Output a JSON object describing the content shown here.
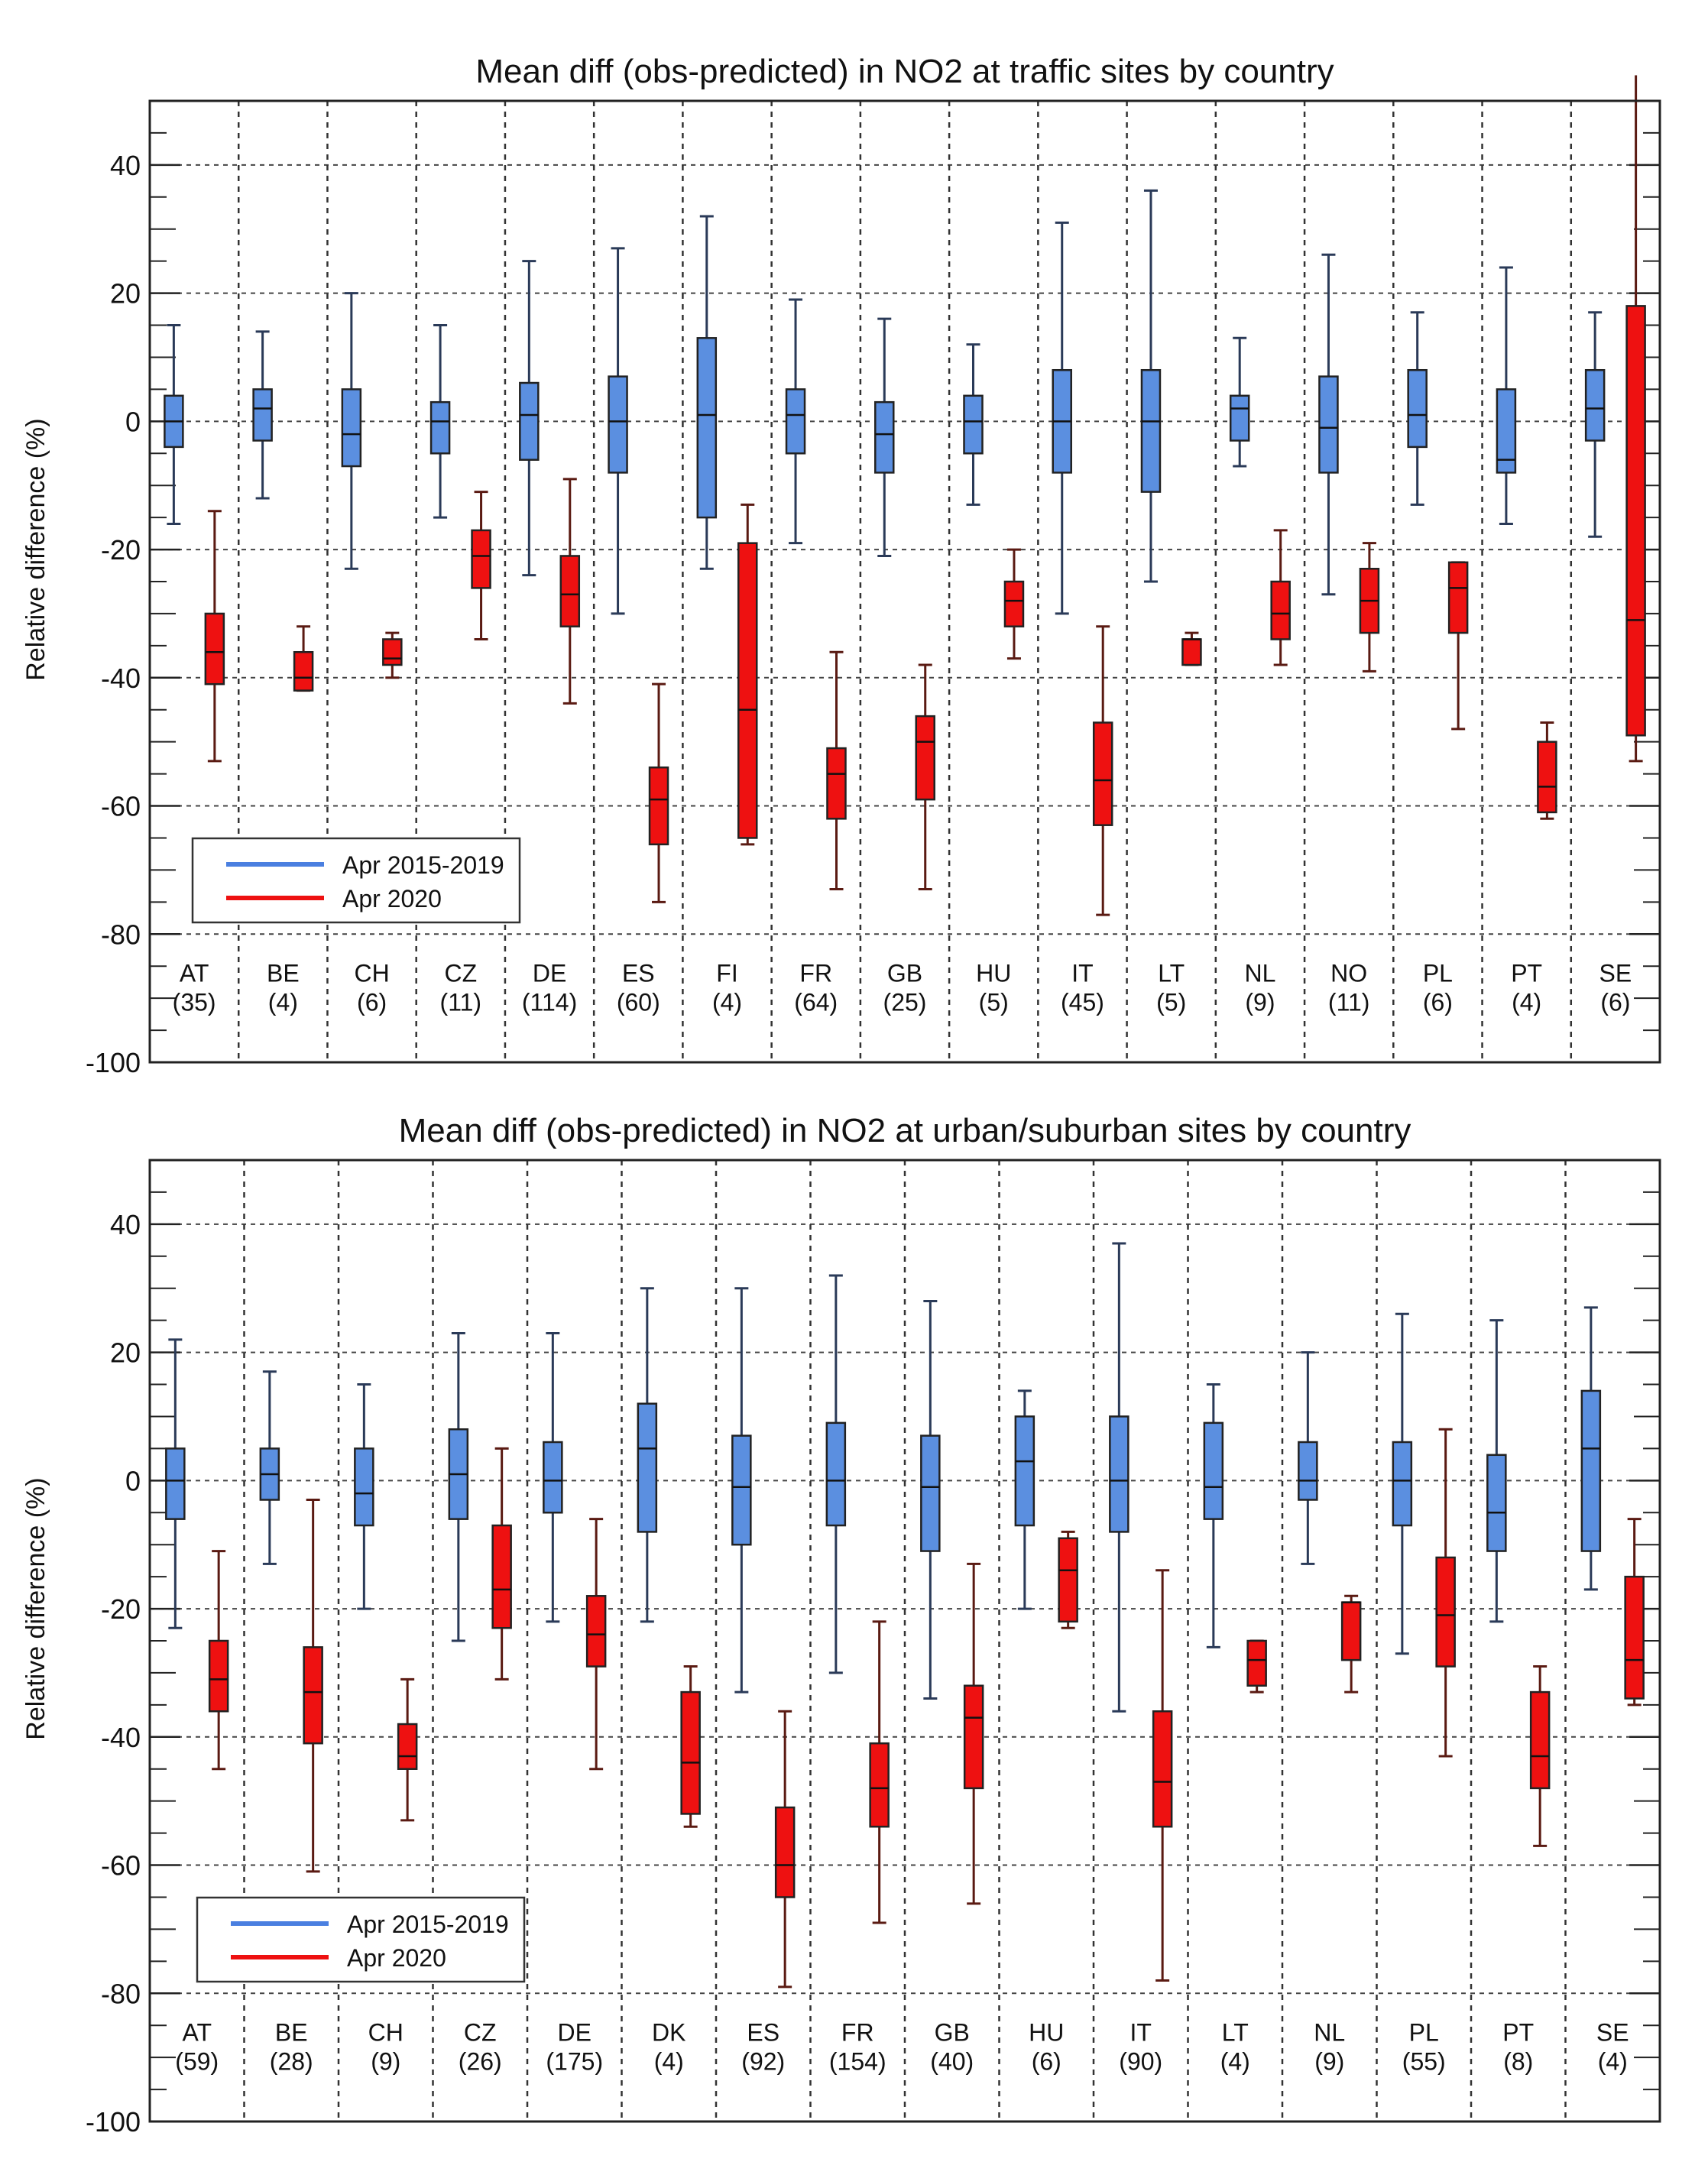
{
  "series_styles": {
    "baseline": {
      "name": "Apr 2015-2019",
      "box_color": "#5b8fe0",
      "whisker_color": "#2a3a58"
    },
    "lockdown": {
      "name": "Apr 2020",
      "box_color": "#ee1111",
      "whisker_color": "#5a1a12"
    }
  },
  "legend_line_colors": {
    "baseline": "#4a7fe0",
    "lockdown": "#ee1111"
  },
  "chart_data": [
    {
      "id": "traffic",
      "type": "boxplot",
      "title": "Mean diff (obs-predicted) in NO2 at traffic sites by country",
      "ylabel": "Relative difference (%)",
      "ylim": [
        -100,
        50
      ],
      "yticks": [
        -100,
        -80,
        -60,
        -40,
        -20,
        0,
        20,
        40
      ],
      "grid": true,
      "legend_placement": "bottom-left",
      "legend": [
        "Apr 2015-2019",
        "Apr 2020"
      ],
      "categories": [
        "AT",
        "BE",
        "CH",
        "CZ",
        "DE",
        "ES",
        "FI",
        "FR",
        "GB",
        "HU",
        "IT",
        "LT",
        "NL",
        "NO",
        "PL",
        "PT",
        "SE"
      ],
      "counts": [
        "(35)",
        "(4)",
        "(6)",
        "(11)",
        "(114)",
        "(60)",
        "(4)",
        "(64)",
        "(25)",
        "(5)",
        "(45)",
        "(5)",
        "(9)",
        "(11)",
        "(6)",
        "(4)",
        "(6)"
      ],
      "series": [
        {
          "name": "Apr 2015-2019",
          "boxes": [
            {
              "min": -16,
              "q1": -4,
              "median": 0,
              "q3": 4,
              "max": 15
            },
            {
              "min": -12,
              "q1": -3,
              "median": 2,
              "q3": 5,
              "max": 14
            },
            {
              "min": -23,
              "q1": -7,
              "median": -2,
              "q3": 5,
              "max": 20
            },
            {
              "min": -15,
              "q1": -5,
              "median": 0,
              "q3": 3,
              "max": 15
            },
            {
              "min": -24,
              "q1": -6,
              "median": 1,
              "q3": 6,
              "max": 25
            },
            {
              "min": -30,
              "q1": -8,
              "median": 0,
              "q3": 7,
              "max": 27
            },
            {
              "min": -23,
              "q1": -15,
              "median": 1,
              "q3": 13,
              "max": 32
            },
            {
              "min": -19,
              "q1": -5,
              "median": 1,
              "q3": 5,
              "max": 19
            },
            {
              "min": -21,
              "q1": -8,
              "median": -2,
              "q3": 3,
              "max": 16
            },
            {
              "min": -13,
              "q1": -5,
              "median": 0,
              "q3": 4,
              "max": 12
            },
            {
              "min": -30,
              "q1": -8,
              "median": 0,
              "q3": 8,
              "max": 31
            },
            {
              "min": -25,
              "q1": -11,
              "median": 0,
              "q3": 8,
              "max": 36
            },
            {
              "min": -7,
              "q1": -3,
              "median": 2,
              "q3": 4,
              "max": 13
            },
            {
              "min": -27,
              "q1": -8,
              "median": -1,
              "q3": 7,
              "max": 26
            },
            {
              "min": -13,
              "q1": -4,
              "median": 1,
              "q3": 8,
              "max": 17
            },
            {
              "min": -16,
              "q1": -8,
              "median": -6,
              "q3": 5,
              "max": 24
            },
            {
              "min": -18,
              "q1": -3,
              "median": 2,
              "q3": 8,
              "max": 17
            }
          ]
        },
        {
          "name": "Apr 2020",
          "boxes": [
            {
              "min": -53,
              "q1": -41,
              "median": -36,
              "q3": -30,
              "max": -14
            },
            {
              "min": -42,
              "q1": -42,
              "median": -40,
              "q3": -36,
              "max": -32
            },
            {
              "min": -40,
              "q1": -38,
              "median": -37,
              "q3": -34,
              "max": -33
            },
            {
              "min": -34,
              "q1": -26,
              "median": -21,
              "q3": -17,
              "max": -11
            },
            {
              "min": -44,
              "q1": -32,
              "median": -27,
              "q3": -21,
              "max": -9
            },
            {
              "min": -75,
              "q1": -66,
              "median": -59,
              "q3": -54,
              "max": -41
            },
            {
              "min": -66,
              "q1": -65,
              "median": -45,
              "q3": -19,
              "max": -13
            },
            {
              "min": -73,
              "q1": -62,
              "median": -55,
              "q3": -51,
              "max": -36
            },
            {
              "min": -73,
              "q1": -59,
              "median": -50,
              "q3": -46,
              "max": -38
            },
            {
              "min": -37,
              "q1": -32,
              "median": -28,
              "q3": -25,
              "max": -20
            },
            {
              "min": -77,
              "q1": -63,
              "median": -56,
              "q3": -47,
              "max": -32
            },
            {
              "min": -38,
              "q1": -38,
              "median": -34,
              "q3": -34,
              "max": -33
            },
            {
              "min": -38,
              "q1": -34,
              "median": -30,
              "q3": -25,
              "max": -17
            },
            {
              "min": -39,
              "q1": -33,
              "median": -28,
              "q3": -23,
              "max": -19
            },
            {
              "min": -48,
              "q1": -33,
              "median": -26,
              "q3": -22,
              "max": -22
            },
            {
              "min": -62,
              "q1": -61,
              "median": -57,
              "q3": -50,
              "max": -47
            },
            {
              "min": -53,
              "q1": -49,
              "median": -31,
              "q3": 18,
              "max": 60
            }
          ]
        }
      ]
    },
    {
      "id": "urban",
      "type": "boxplot",
      "title": "Mean diff (obs-predicted) in NO2 at urban/suburban sites by country",
      "ylabel": "Relative difference (%)",
      "ylim": [
        -100,
        50
      ],
      "yticks": [
        -100,
        -80,
        -60,
        -40,
        -20,
        0,
        20,
        40
      ],
      "grid": true,
      "legend_placement": "bottom-left",
      "legend": [
        "Apr 2015-2019",
        "Apr 2020"
      ],
      "categories": [
        "AT",
        "BE",
        "CH",
        "CZ",
        "DE",
        "DK",
        "ES",
        "FR",
        "GB",
        "HU",
        "IT",
        "LT",
        "NL",
        "PL",
        "PT",
        "SE"
      ],
      "counts": [
        "(59)",
        "(28)",
        "(9)",
        "(26)",
        "(175)",
        "(4)",
        "(92)",
        "(154)",
        "(40)",
        "(6)",
        "(90)",
        "(4)",
        "(9)",
        "(55)",
        "(8)",
        "(4)"
      ],
      "series": [
        {
          "name": "Apr 2015-2019",
          "boxes": [
            {
              "min": -23,
              "q1": -6,
              "median": 0,
              "q3": 5,
              "max": 22
            },
            {
              "min": -13,
              "q1": -3,
              "median": 1,
              "q3": 5,
              "max": 17
            },
            {
              "min": -20,
              "q1": -7,
              "median": -2,
              "q3": 5,
              "max": 15
            },
            {
              "min": -25,
              "q1": -6,
              "median": 1,
              "q3": 8,
              "max": 23
            },
            {
              "min": -22,
              "q1": -5,
              "median": 0,
              "q3": 6,
              "max": 23
            },
            {
              "min": -22,
              "q1": -8,
              "median": 5,
              "q3": 12,
              "max": 30
            },
            {
              "min": -33,
              "q1": -10,
              "median": -1,
              "q3": 7,
              "max": 30
            },
            {
              "min": -30,
              "q1": -7,
              "median": 0,
              "q3": 9,
              "max": 32
            },
            {
              "min": -34,
              "q1": -11,
              "median": -1,
              "q3": 7,
              "max": 28
            },
            {
              "min": -20,
              "q1": -7,
              "median": 3,
              "q3": 10,
              "max": 14
            },
            {
              "min": -36,
              "q1": -8,
              "median": 0,
              "q3": 10,
              "max": 37
            },
            {
              "min": -26,
              "q1": -6,
              "median": -1,
              "q3": 9,
              "max": 15
            },
            {
              "min": -13,
              "q1": -3,
              "median": 0,
              "q3": 6,
              "max": 20
            },
            {
              "min": -27,
              "q1": -7,
              "median": 0,
              "q3": 6,
              "max": 26
            },
            {
              "min": -22,
              "q1": -11,
              "median": -5,
              "q3": 4,
              "max": 25
            },
            {
              "min": -17,
              "q1": -11,
              "median": 5,
              "q3": 14,
              "max": 27
            }
          ]
        },
        {
          "name": "Apr 2020",
          "boxes": [
            {
              "min": -45,
              "q1": -36,
              "median": -31,
              "q3": -25,
              "max": -11
            },
            {
              "min": -61,
              "q1": -41,
              "median": -33,
              "q3": -26,
              "max": -3
            },
            {
              "min": -53,
              "q1": -45,
              "median": -43,
              "q3": -38,
              "max": -31
            },
            {
              "min": -31,
              "q1": -23,
              "median": -17,
              "q3": -7,
              "max": 5
            },
            {
              "min": -45,
              "q1": -29,
              "median": -24,
              "q3": -18,
              "max": -6
            },
            {
              "min": -54,
              "q1": -52,
              "median": -44,
              "q3": -33,
              "max": -29
            },
            {
              "min": -79,
              "q1": -65,
              "median": -60,
              "q3": -51,
              "max": -36
            },
            {
              "min": -69,
              "q1": -54,
              "median": -48,
              "q3": -41,
              "max": -22
            },
            {
              "min": -66,
              "q1": -48,
              "median": -37,
              "q3": -32,
              "max": -13
            },
            {
              "min": -23,
              "q1": -22,
              "median": -14,
              "q3": -9,
              "max": -8
            },
            {
              "min": -78,
              "q1": -54,
              "median": -47,
              "q3": -36,
              "max": -14
            },
            {
              "min": -33,
              "q1": -32,
              "median": -28,
              "q3": -25,
              "max": -25
            },
            {
              "min": -33,
              "q1": -28,
              "median": -19,
              "q3": -19,
              "max": -18
            },
            {
              "min": -43,
              "q1": -29,
              "median": -21,
              "q3": -12,
              "max": 8
            },
            {
              "min": -57,
              "q1": -48,
              "median": -43,
              "q3": -33,
              "max": -29
            },
            {
              "min": -35,
              "q1": -34,
              "median": -28,
              "q3": -15,
              "max": -6
            }
          ]
        }
      ]
    }
  ]
}
